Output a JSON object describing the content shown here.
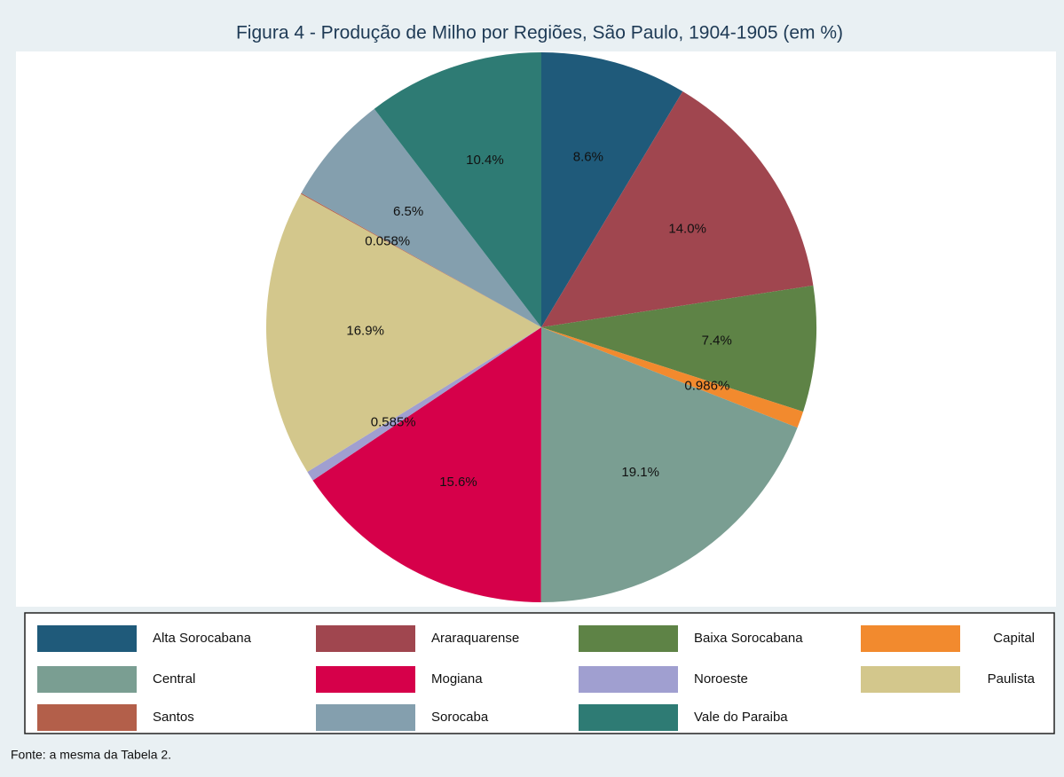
{
  "chart_data": {
    "type": "pie",
    "title": "Figura 4 - Produção de Milho por Regiões, São Paulo, 1904-1905 (em %)",
    "categories": [
      "Alta Sorocabana",
      "Araraquarense",
      "Baixa Sorocabana",
      "Capital",
      "Central",
      "Mogiana",
      "Noroeste",
      "Paulista",
      "Santos",
      "Sorocaba",
      "Vale do Paraiba"
    ],
    "values": [
      8.6,
      14.0,
      7.4,
      0.986,
      19.1,
      15.6,
      0.585,
      16.9,
      0.058,
      6.5,
      10.4
    ],
    "value_labels": [
      "8.6%",
      "14.0%",
      "7.4%",
      "0.986%",
      "19.1%",
      "15.6%",
      "0.585%",
      "16.9%",
      "0.058%",
      "6.5%",
      "10.4%"
    ],
    "colors": [
      "#1f5a7a",
      "#a0464f",
      "#5e8346",
      "#f28a2e",
      "#7a9e92",
      "#d6004a",
      "#a09fd0",
      "#d3c78c",
      "#b35f4a",
      "#849fae",
      "#2e7b74"
    ],
    "note": "Fonte: a mesma da Tabela 2."
  }
}
